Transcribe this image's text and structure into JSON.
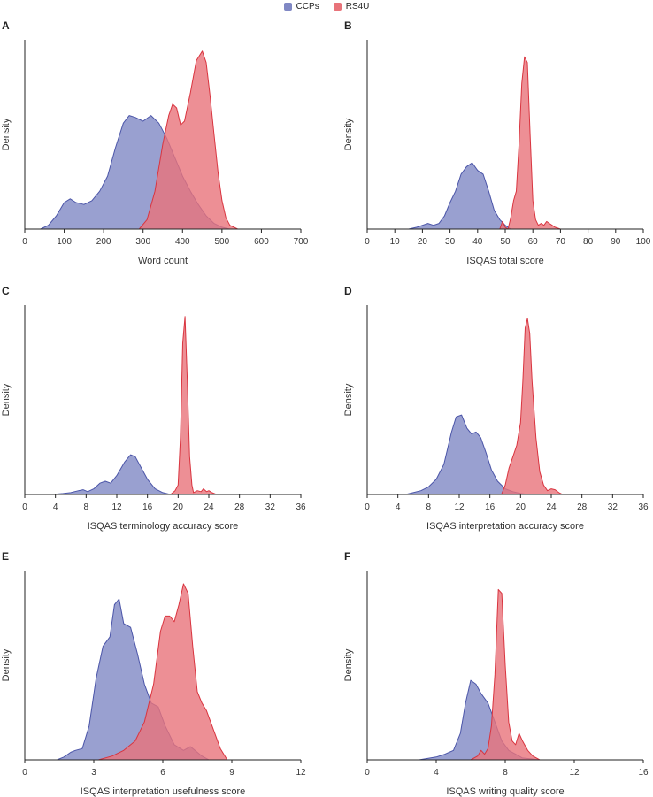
{
  "legend": [
    {
      "name": "CCPs",
      "color": "#8088c4"
    },
    {
      "name": "RS4U",
      "color": "#e8737a"
    }
  ],
  "colors": {
    "ccps_fill": "#8088c4",
    "ccps_line": "#4b55a8",
    "rs4u_fill": "#e8737a",
    "rs4u_line": "#d9343f",
    "axis": "#222222"
  },
  "chart_data": [
    {
      "panel": "A",
      "type": "area",
      "xlabel": "Word count",
      "ylabel": "Density",
      "xlim": [
        0,
        700
      ],
      "xticks": [
        0,
        100,
        200,
        300,
        400,
        500,
        600,
        700
      ],
      "ylim": [
        0,
        1
      ],
      "series": [
        {
          "name": "CCPs",
          "x": [
            40,
            60,
            80,
            100,
            115,
            130,
            150,
            170,
            190,
            210,
            230,
            250,
            265,
            280,
            300,
            320,
            340,
            360,
            380,
            400,
            420,
            440,
            460,
            480,
            500,
            520
          ],
          "y": [
            0,
            0.02,
            0.07,
            0.14,
            0.16,
            0.14,
            0.13,
            0.15,
            0.2,
            0.28,
            0.43,
            0.56,
            0.6,
            0.59,
            0.57,
            0.6,
            0.56,
            0.48,
            0.38,
            0.28,
            0.2,
            0.13,
            0.07,
            0.03,
            0.01,
            0
          ]
        },
        {
          "name": "RS4U",
          "x": [
            290,
            310,
            330,
            350,
            365,
            375,
            385,
            395,
            405,
            420,
            435,
            450,
            460,
            470,
            480,
            490,
            500,
            510,
            520,
            540
          ],
          "y": [
            0,
            0.05,
            0.2,
            0.45,
            0.6,
            0.66,
            0.64,
            0.55,
            0.57,
            0.72,
            0.89,
            0.94,
            0.88,
            0.7,
            0.5,
            0.3,
            0.15,
            0.06,
            0.02,
            0
          ]
        }
      ]
    },
    {
      "panel": "B",
      "type": "area",
      "xlabel": "ISQAS total score",
      "ylabel": "Density",
      "xlim": [
        0,
        100
      ],
      "xticks": [
        0,
        10,
        20,
        30,
        40,
        50,
        60,
        70,
        80,
        90,
        100
      ],
      "ylim": [
        0,
        1
      ],
      "series": [
        {
          "name": "CCPs",
          "x": [
            15,
            18,
            20,
            22,
            24,
            26,
            28,
            30,
            32,
            34,
            36,
            38,
            40,
            42,
            44,
            46,
            48,
            50,
            52
          ],
          "y": [
            0,
            0.01,
            0.02,
            0.03,
            0.02,
            0.03,
            0.07,
            0.14,
            0.2,
            0.29,
            0.33,
            0.35,
            0.31,
            0.29,
            0.2,
            0.1,
            0.05,
            0.02,
            0
          ]
        },
        {
          "name": "RS4U",
          "x": [
            48,
            49,
            50,
            51,
            52,
            53,
            54,
            55,
            56,
            57,
            58,
            59,
            60,
            61,
            62,
            63,
            64,
            65,
            66,
            67,
            68,
            70
          ],
          "y": [
            0,
            0.04,
            0.01,
            0,
            0.06,
            0.15,
            0.2,
            0.45,
            0.77,
            0.91,
            0.88,
            0.5,
            0.15,
            0.05,
            0.02,
            0.03,
            0.02,
            0.04,
            0.03,
            0.02,
            0.01,
            0
          ]
        }
      ]
    },
    {
      "panel": "C",
      "type": "area",
      "xlabel": "ISQAS terminology accuracy score",
      "ylabel": "Density",
      "xlim": [
        0,
        36
      ],
      "xticks": [
        0,
        4,
        8,
        12,
        16,
        20,
        24,
        28,
        32,
        36
      ],
      "ylim": [
        0,
        1
      ],
      "series": [
        {
          "name": "CCPs",
          "x": [
            3.5,
            5,
            6,
            7,
            7.6,
            8.2,
            9,
            9.8,
            10.5,
            11.2,
            12,
            13,
            13.8,
            14.4,
            15.2,
            16,
            17,
            18,
            19
          ],
          "y": [
            0,
            0.005,
            0.01,
            0.02,
            0.025,
            0.015,
            0.03,
            0.06,
            0.07,
            0.06,
            0.1,
            0.17,
            0.21,
            0.2,
            0.14,
            0.08,
            0.03,
            0.01,
            0
          ]
        },
        {
          "name": "RS4U",
          "x": [
            19,
            19.6,
            20,
            20.3,
            20.6,
            20.9,
            21.2,
            21.5,
            21.8,
            22,
            22.5,
            23,
            23.3,
            23.7,
            24,
            24.4,
            25
          ],
          "y": [
            0,
            0.02,
            0.05,
            0.3,
            0.8,
            0.94,
            0.6,
            0.2,
            0.05,
            0.01,
            0.02,
            0.015,
            0.03,
            0.015,
            0.02,
            0.01,
            0
          ]
        }
      ]
    },
    {
      "panel": "D",
      "type": "area",
      "xlabel": "ISQAS interpretation accuracy score",
      "ylabel": "Density",
      "xlim": [
        0,
        36
      ],
      "xticks": [
        0,
        4,
        8,
        12,
        16,
        20,
        24,
        28,
        32,
        36
      ],
      "ylim": [
        0,
        1
      ],
      "series": [
        {
          "name": "CCPs",
          "x": [
            5,
            6,
            7,
            8,
            9,
            10,
            11,
            11.6,
            12.3,
            13,
            13.6,
            14.2,
            14.8,
            15.5,
            16.2,
            17,
            18,
            19,
            20,
            21
          ],
          "y": [
            0,
            0.01,
            0.02,
            0.04,
            0.08,
            0.16,
            0.33,
            0.41,
            0.42,
            0.35,
            0.32,
            0.33,
            0.3,
            0.22,
            0.13,
            0.07,
            0.03,
            0.015,
            0.005,
            0
          ]
        },
        {
          "name": "RS4U",
          "x": [
            17.5,
            18,
            18.5,
            19,
            19.5,
            20,
            20.3,
            20.6,
            20.9,
            21.2,
            21.5,
            22,
            22.5,
            23,
            23.5,
            24,
            24.5,
            25,
            25.5
          ],
          "y": [
            0,
            0.05,
            0.14,
            0.2,
            0.26,
            0.38,
            0.6,
            0.88,
            0.93,
            0.85,
            0.6,
            0.3,
            0.12,
            0.05,
            0.02,
            0.03,
            0.025,
            0.01,
            0
          ]
        }
      ]
    },
    {
      "panel": "E",
      "type": "area",
      "xlabel": "ISQAS interpretation usefulness score",
      "ylabel": "Density",
      "xlim": [
        0,
        12
      ],
      "xticks": [
        0,
        3,
        6,
        9,
        12
      ],
      "ylim": [
        0,
        1
      ],
      "series": [
        {
          "name": "CCPs",
          "x": [
            1.4,
            1.7,
            2,
            2.2,
            2.5,
            2.8,
            3.1,
            3.4,
            3.7,
            3.9,
            4.1,
            4.3,
            4.6,
            4.9,
            5.2,
            5.5,
            5.8,
            6.1,
            6.5,
            6.9,
            7.2,
            7.4,
            7.7,
            8
          ],
          "y": [
            0,
            0.015,
            0.04,
            0.05,
            0.06,
            0.18,
            0.43,
            0.6,
            0.65,
            0.82,
            0.85,
            0.72,
            0.7,
            0.56,
            0.4,
            0.3,
            0.28,
            0.18,
            0.08,
            0.05,
            0.07,
            0.05,
            0.02,
            0
          ]
        },
        {
          "name": "RS4U",
          "x": [
            3.2,
            3.8,
            4.3,
            4.8,
            5.2,
            5.6,
            5.9,
            6.1,
            6.3,
            6.5,
            6.7,
            6.9,
            7.1,
            7.3,
            7.5,
            7.7,
            7.9,
            8.2,
            8.5,
            8.8
          ],
          "y": [
            0,
            0.02,
            0.05,
            0.1,
            0.2,
            0.4,
            0.68,
            0.76,
            0.76,
            0.73,
            0.82,
            0.93,
            0.88,
            0.6,
            0.36,
            0.3,
            0.26,
            0.16,
            0.06,
            0
          ]
        }
      ]
    },
    {
      "panel": "F",
      "type": "area",
      "xlabel": "ISQAS writing quality score",
      "ylabel": "Density",
      "xlim": [
        0,
        16
      ],
      "xticks": [
        0,
        4,
        8,
        12,
        16
      ],
      "ylim": [
        0,
        1
      ],
      "series": [
        {
          "name": "CCPs",
          "x": [
            3,
            4,
            4.5,
            5,
            5.4,
            5.7,
            6,
            6.3,
            6.6,
            7,
            7.4,
            7.8,
            8.2,
            8.6,
            9,
            9.5,
            10
          ],
          "y": [
            0,
            0.015,
            0.03,
            0.05,
            0.14,
            0.3,
            0.42,
            0.4,
            0.35,
            0.3,
            0.2,
            0.1,
            0.05,
            0.03,
            0.01,
            0.005,
            0
          ]
        },
        {
          "name": "RS4U",
          "x": [
            6,
            6.4,
            6.6,
            6.8,
            7,
            7.2,
            7.4,
            7.6,
            7.8,
            8,
            8.2,
            8.4,
            8.6,
            8.8,
            9,
            9.3,
            9.6,
            10
          ],
          "y": [
            0,
            0.02,
            0.05,
            0.03,
            0.06,
            0.18,
            0.45,
            0.9,
            0.88,
            0.5,
            0.2,
            0.1,
            0.08,
            0.14,
            0.1,
            0.05,
            0.02,
            0
          ]
        }
      ]
    }
  ]
}
